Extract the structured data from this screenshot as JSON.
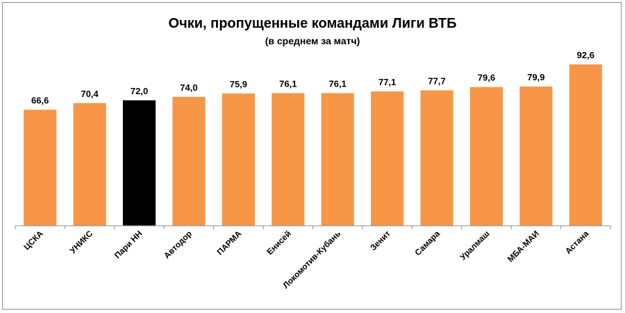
{
  "chart_data": {
    "type": "bar",
    "title": "Очки, пропущенные командами Лиги ВТБ",
    "subtitle": "(в среднем за матч)",
    "xlabel": "",
    "ylabel": "",
    "categories": [
      "ЦСКА",
      "УНИКС",
      "Пари НН",
      "Автодор",
      "ПАРМА",
      "Енисей",
      "Локомотив-Кубань",
      "Зенит",
      "Самара",
      "Уралмаш",
      "МБА-МАИ",
      "Астана"
    ],
    "values": [
      66.6,
      70.4,
      72.0,
      74.0,
      75.9,
      76.1,
      76.1,
      77.1,
      77.7,
      79.6,
      79.9,
      92.6
    ],
    "value_labels": [
      "66,6",
      "70,4",
      "72,0",
      "74,0",
      "75,9",
      "76,1",
      "76,1",
      "77,1",
      "77,7",
      "79,6",
      "79,9",
      "92,6"
    ],
    "ylim": [
      0,
      95
    ],
    "y_axis_visible": false,
    "grid": false,
    "legend": "none",
    "bar_color": "#f79646",
    "highlight_category": "Пари НН",
    "highlight_color": "#000000"
  }
}
